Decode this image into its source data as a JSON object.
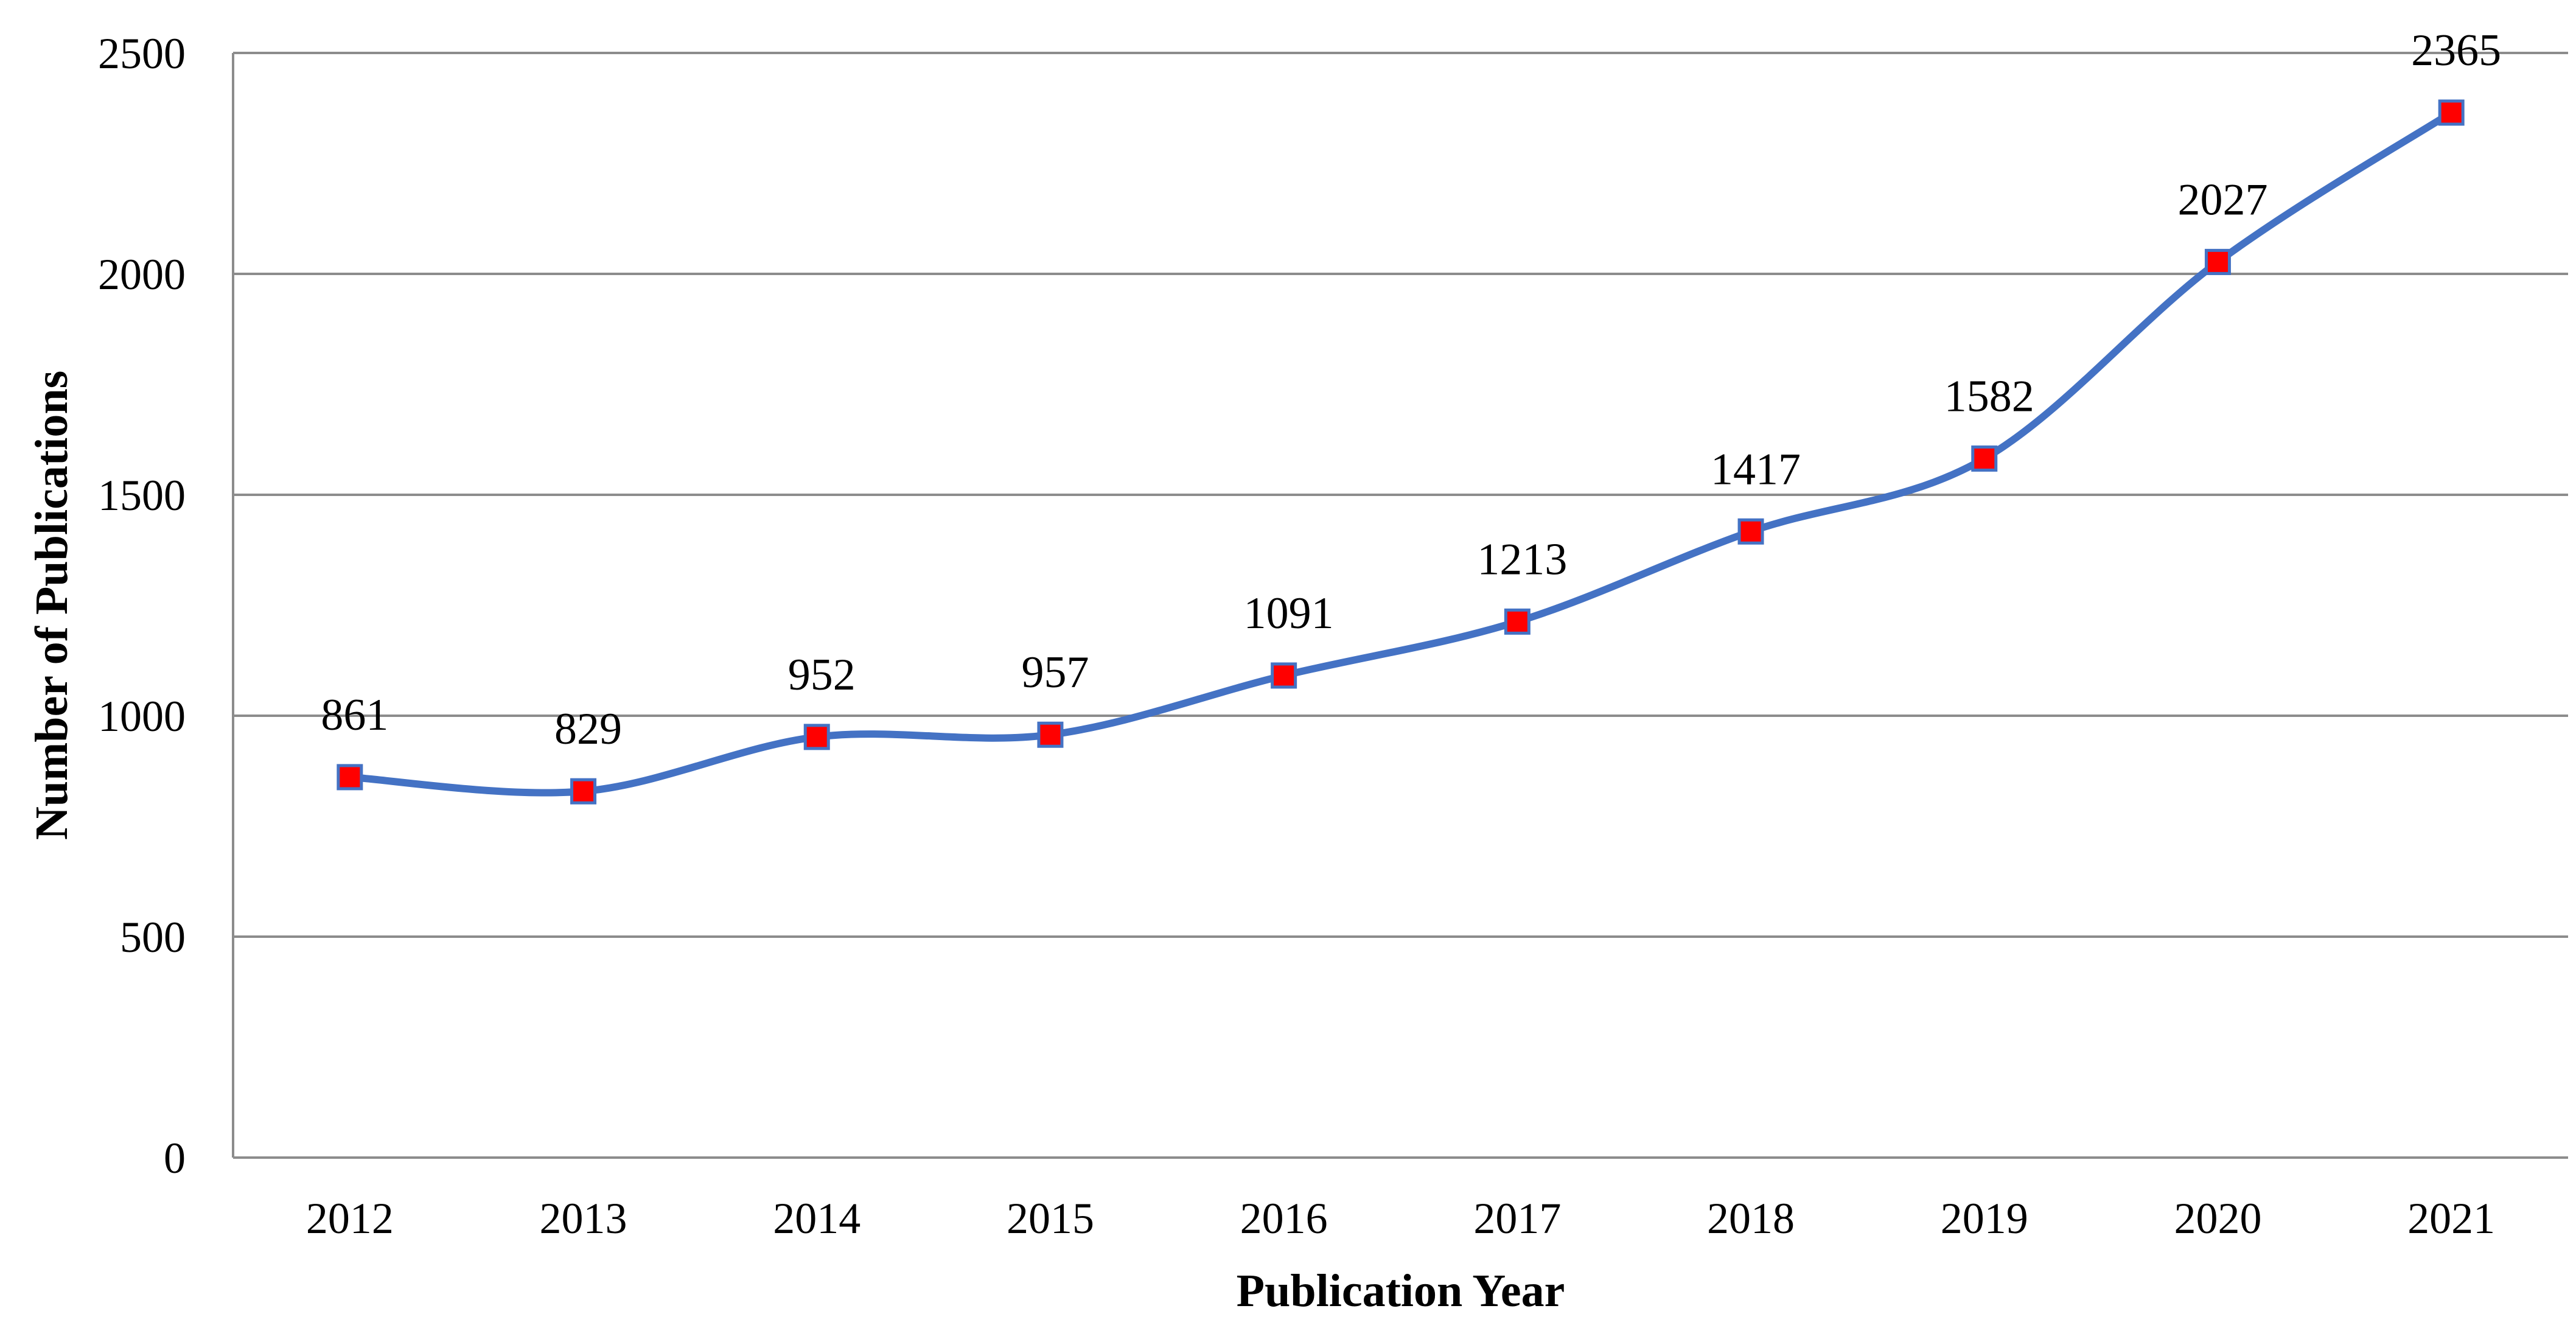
{
  "chart_data": {
    "type": "line",
    "title": "",
    "xlabel": "Publication Year",
    "ylabel": "Number of Publications",
    "categories": [
      "2012",
      "2013",
      "2014",
      "2015",
      "2016",
      "2017",
      "2018",
      "2019",
      "2020",
      "2021"
    ],
    "series": [
      {
        "values": [
          861,
          829,
          952,
          957,
          1091,
          1213,
          1417,
          1582,
          2027,
          2365
        ],
        "line_color": "#4472C4",
        "marker_color": "#FF0000",
        "marker_edge_color": "#4472C4",
        "marker": "square",
        "smooth": true,
        "data_labels": [
          "861",
          "829",
          "952",
          "957",
          "1091",
          "1213",
          "1417",
          "1582",
          "2027",
          "2365"
        ]
      }
    ],
    "ylim": [
      0,
      2500
    ],
    "yticks": [
      0,
      500,
      1000,
      1500,
      2000,
      2500
    ],
    "ytick_labels": [
      "0",
      "500",
      "1000",
      "1500",
      "2000",
      "2500"
    ],
    "grid": true,
    "gridline_color": "#8C8C8C",
    "legend": "none"
  }
}
